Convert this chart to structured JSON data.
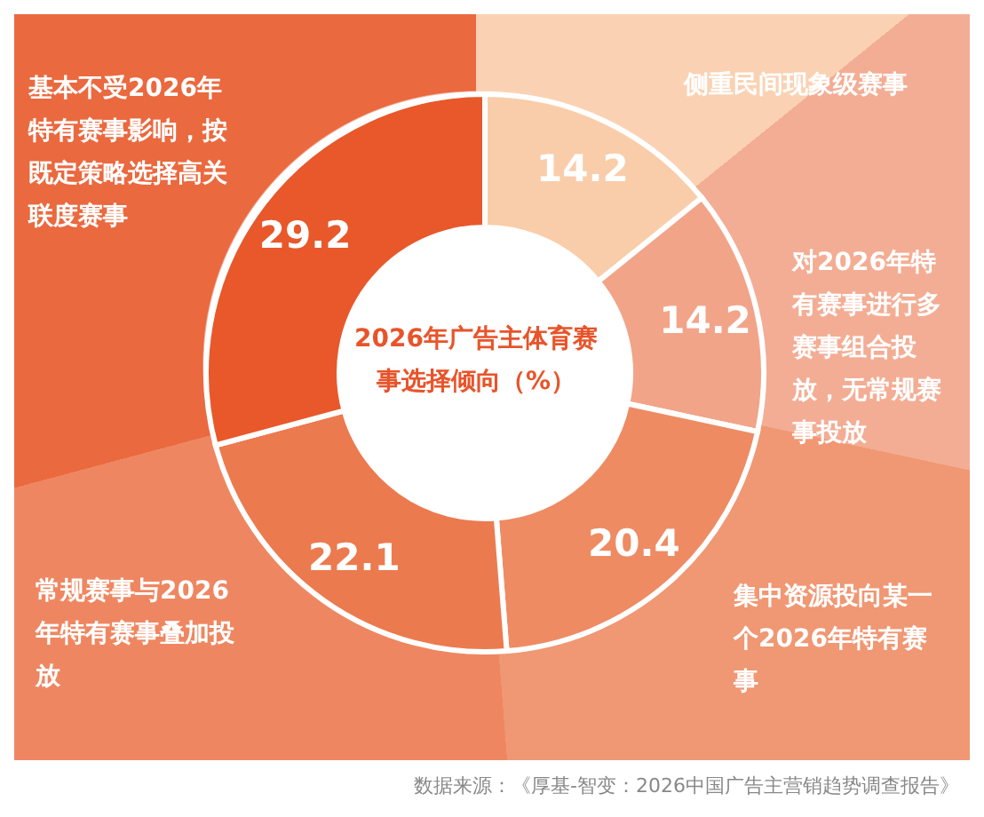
{
  "chart_data": {
    "type": "donut",
    "title": "2026年广告主体育赛事选择倾向（%）",
    "categories": [
      "侧重民间现象级赛事",
      "对2026年特有赛事进行多赛事组合投放，无常规赛事投放",
      "集中资源投向某一个2026年特有赛事",
      "常规赛事与2026年特有赛事叠加投放",
      "基本不受2026年特有赛事影响，按既定策略选择高关联度赛事"
    ],
    "values": [
      14.2,
      14.2,
      20.4,
      22.1,
      29.2
    ],
    "colors": [
      "#f9cdaa",
      "#f2a488",
      "#ee8b63",
      "#ec7a4f",
      "#e8582a"
    ],
    "data_labels": true,
    "annotations": [
      "数据来源：《厚基-智变：2026中国广告主营销趋势调查报告》"
    ]
  }
}
